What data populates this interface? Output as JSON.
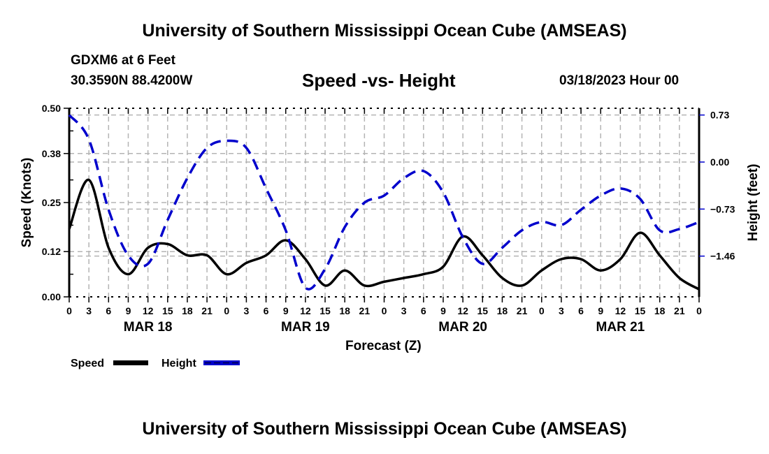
{
  "header": {
    "title": "University of Southern Mississippi Ocean Cube (AMSEAS)",
    "station": "GDXM6 at 6 Feet",
    "coords": "30.3590N  88.4200W",
    "subtitle": "Speed -vs- Height",
    "datetime": "03/18/2023 Hour 00"
  },
  "footer": {
    "title": "University of Southern Mississippi Ocean Cube (AMSEAS)"
  },
  "chart_data": {
    "type": "line",
    "title": "Speed -vs- Height",
    "xlabel": "Forecast (Z)",
    "ylabel": "Speed (Knots)",
    "y2label": "Height (feet)",
    "x_hours": [
      0,
      3,
      6,
      9,
      12,
      15,
      18,
      21,
      24,
      27,
      30,
      33,
      36,
      39,
      42,
      45,
      48,
      51,
      54,
      57,
      60,
      63,
      66,
      69,
      72,
      75,
      78,
      81,
      84,
      87,
      90,
      93,
      96
    ],
    "x_tick_labels": [
      "0",
      "3",
      "6",
      "9",
      "12",
      "15",
      "18",
      "21",
      "0",
      "3",
      "6",
      "9",
      "12",
      "15",
      "18",
      "21",
      "0",
      "3",
      "6",
      "9",
      "12",
      "15",
      "18",
      "21",
      "0",
      "3",
      "6",
      "9",
      "12",
      "15",
      "18",
      "21",
      "0"
    ],
    "date_labels": [
      {
        "label": "MAR 18",
        "hour": 12
      },
      {
        "label": "MAR 19",
        "hour": 36
      },
      {
        "label": "MAR 20",
        "hour": 60
      },
      {
        "label": "MAR 21",
        "hour": 84
      }
    ],
    "ylim": [
      0,
      0.5
    ],
    "y_ticks": [
      "0.00",
      "0.12",
      "0.25",
      "0.38",
      "0.50"
    ],
    "y2lim": [
      -2.0,
      0.82
    ],
    "y2_ticks": [
      "0.73",
      "0.00",
      "-0.73",
      "-1.46"
    ],
    "grid": true,
    "legend_position": "bottom-left",
    "series": [
      {
        "name": "Speed",
        "axis": "left",
        "color": "#000000",
        "style": "solid",
        "values": [
          0.18,
          0.31,
          0.13,
          0.06,
          0.13,
          0.14,
          0.11,
          0.11,
          0.06,
          0.09,
          0.11,
          0.15,
          0.1,
          0.03,
          0.07,
          0.03,
          0.04,
          0.05,
          0.06,
          0.08,
          0.16,
          0.11,
          0.05,
          0.03,
          0.07,
          0.1,
          0.1,
          0.07,
          0.1,
          0.17,
          0.11,
          0.05,
          0.02
        ]
      },
      {
        "name": "Height",
        "axis": "right",
        "color": "#0000cc",
        "style": "dashed",
        "values": [
          0.73,
          0.35,
          -0.74,
          -1.45,
          -1.58,
          -0.9,
          -0.25,
          0.22,
          0.33,
          0.22,
          -0.41,
          -1.06,
          -1.95,
          -1.66,
          -1.01,
          -0.63,
          -0.52,
          -0.25,
          -0.14,
          -0.47,
          -1.17,
          -1.58,
          -1.33,
          -1.06,
          -0.93,
          -0.98,
          -0.74,
          -0.52,
          -0.41,
          -0.57,
          -1.06,
          -1.04,
          -0.93
        ]
      }
    ]
  }
}
